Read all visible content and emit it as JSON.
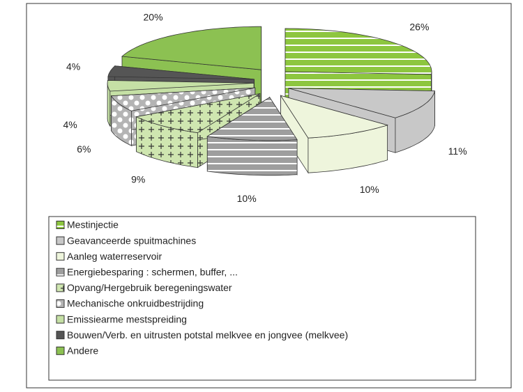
{
  "chart_data": {
    "type": "pie",
    "categories": [
      "Mestinjectie",
      "Geavanceerde spuitmachines",
      "Aanleg waterreservoir",
      "Energiebesparing : schermen, buffer, ...",
      "Opvang/Hergebruik beregeningswater",
      "Mechanische onkruidbestrijding",
      "Emissiearme mestspreiding",
      "Bouwen/Verb. en uitrusten potstal melkvee en jongvee (melkvee)",
      "Andere"
    ],
    "values": [
      26,
      11,
      10,
      10,
      9,
      6,
      4,
      4,
      20
    ],
    "value_labels": [
      "26%",
      "11%",
      "10%",
      "10%",
      "9%",
      "6%",
      "4%",
      "4%",
      "20%"
    ],
    "colors": [
      "#8dc63f",
      "#c8c8c8",
      "#eef5dc",
      "#9e9e9e",
      "#cfe6b0",
      "#b4b4b4",
      "#c5e0a5",
      "#555555",
      "#8cc152"
    ],
    "patterns": [
      "stripes",
      "solid",
      "solid",
      "stripes",
      "plus",
      "dots",
      "solid",
      "solid",
      "solid"
    ]
  }
}
